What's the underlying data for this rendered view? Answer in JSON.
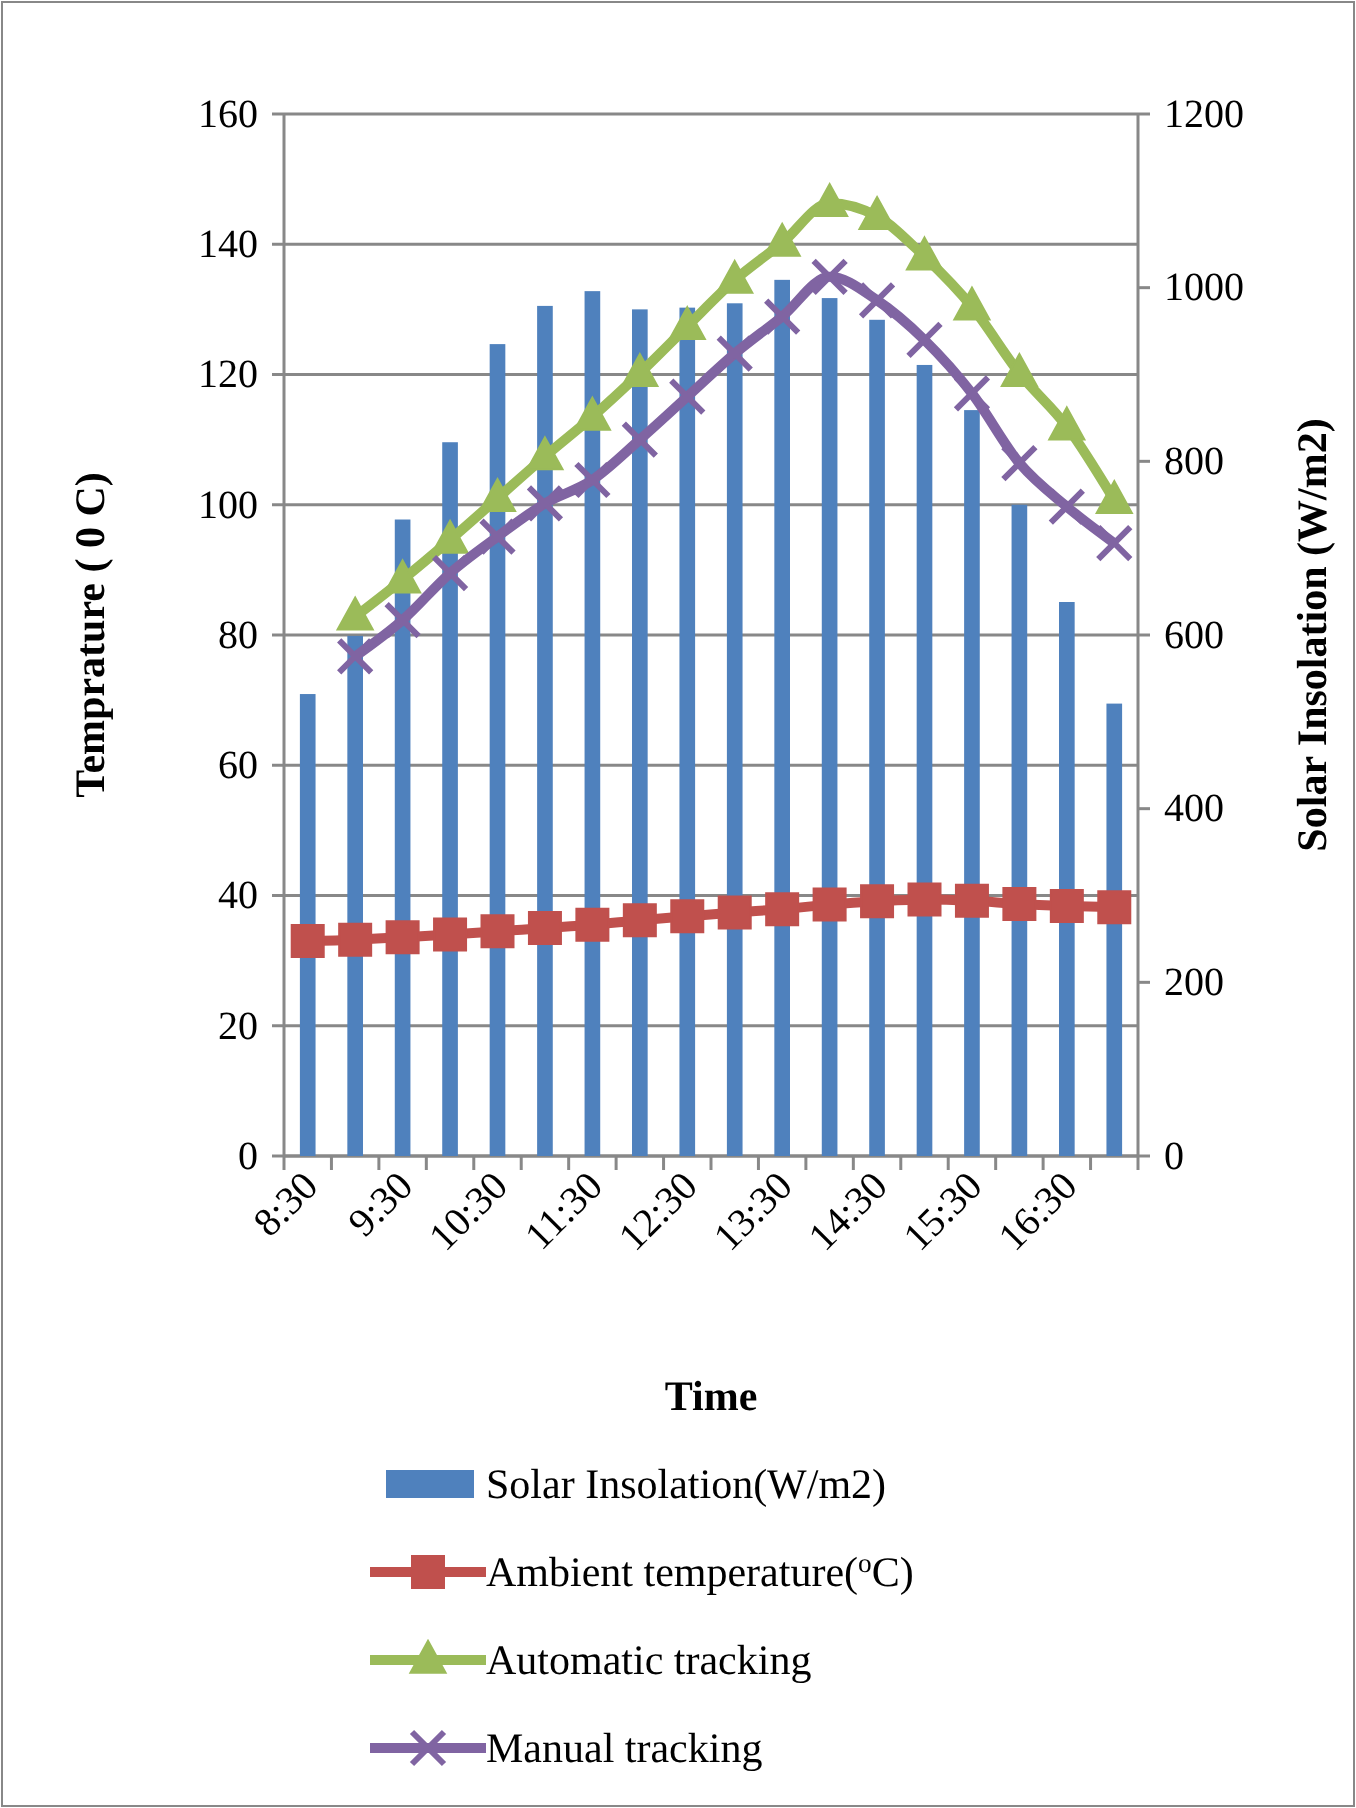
{
  "chart_data": {
    "type": "bar",
    "xlabel": "Time",
    "ylabel": "Temprature ( 0 C)",
    "y2label": "Solar Insolation (W/m2)",
    "categories": [
      "8:30",
      null,
      "9:30",
      null,
      "10:30",
      null,
      "11:30",
      null,
      "12:30",
      null,
      "13:30",
      null,
      "14:30",
      null,
      "15:30",
      null,
      "16:30",
      null
    ],
    "series": [
      {
        "name": "Solar Insolation(W/m2)",
        "axis": "y2",
        "color": "#4f81bd",
        "values": [
          532,
          599,
          733,
          822,
          935,
          979,
          996,
          975,
          977,
          982,
          1009,
          988,
          963,
          911,
          859,
          750,
          638,
          521
        ]
      },
      {
        "name": "Ambient temperature($^{o}$C)",
        "type": "line",
        "color": "#c0504d",
        "marker": "square",
        "values": [
          33.0,
          33.2,
          33.6,
          34.0,
          34.5,
          35.0,
          35.5,
          36.2,
          36.8,
          37.4,
          37.9,
          38.6,
          39.1,
          39.4,
          39.2,
          38.7,
          38.4,
          38.2
        ]
      },
      {
        "name": "Automatic tracking",
        "type": "line",
        "color": "#9bbb59",
        "marker": "triangle",
        "values": [
          null,
          82.8,
          88.5,
          94.6,
          101.0,
          107.4,
          113.5,
          120.2,
          127.4,
          134.5,
          140.2,
          146.3,
          144.3,
          138.1,
          130.4,
          120.2,
          112.0,
          100.7
        ]
      },
      {
        "name": "Manual tracking",
        "type": "line",
        "color": "#8064a2",
        "marker": "cross",
        "values": [
          null,
          76.7,
          82.3,
          89.5,
          95.1,
          100.2,
          103.8,
          110.0,
          116.6,
          123.2,
          128.9,
          135.0,
          131.4,
          125.3,
          117.1,
          106.4,
          99.7,
          94.1
        ]
      }
    ],
    "ylim": [
      0,
      160
    ],
    "yticks": [
      0,
      20,
      40,
      60,
      80,
      100,
      120,
      140,
      160
    ],
    "y2lim": [
      0,
      1200
    ],
    "y2ticks": [
      0,
      200,
      400,
      600,
      800,
      1000,
      1200
    ],
    "grid": "y",
    "legend": "bottom"
  }
}
